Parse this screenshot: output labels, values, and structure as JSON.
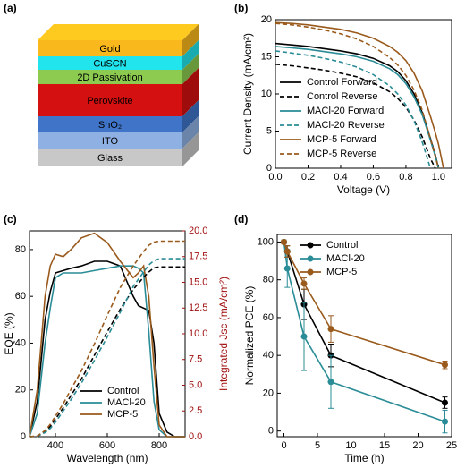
{
  "stack": {
    "panel_label": "(a)",
    "layers": [
      {
        "label": "Gold",
        "color": "#f9b81c"
      },
      {
        "label": "CuSCN",
        "color": "#22e4ec"
      },
      {
        "label": "2D Passivation",
        "color": "#8ccb50"
      },
      {
        "label": "Perovskite",
        "color": "#d41010"
      },
      {
        "label": "SnO₂",
        "color": "#3f74c8"
      },
      {
        "label": "ITO",
        "color": "#8fb0e3"
      },
      {
        "label": "Glass",
        "color": "#c8c8c8"
      }
    ]
  },
  "chart_data": [
    {
      "type": "line",
      "panel_label": "(b)",
      "xlabel": "Voltage (V)",
      "ylabel": "Current Density (mA/cm²)",
      "xlim": [
        0,
        1.08
      ],
      "xticks": [
        {
          "value": 0,
          "label": "0.0"
        },
        {
          "value": 0.2,
          "label": "0.2"
        },
        {
          "value": 0.4,
          "label": "0.4"
        },
        {
          "value": 0.6,
          "label": "0.6"
        },
        {
          "value": 0.8,
          "label": "0.8"
        },
        {
          "value": 1,
          "label": "1.0"
        }
      ],
      "ylim": [
        0,
        20
      ],
      "yticks": [
        0,
        5,
        10,
        15,
        20
      ],
      "legend": "lower left",
      "x": [
        0,
        0.1,
        0.2,
        0.3,
        0.4,
        0.5,
        0.6,
        0.7,
        0.75,
        0.8,
        0.85,
        0.9,
        0.95,
        0.98,
        1.0,
        1.03
      ],
      "series": [
        {
          "name": "Control Forward",
          "color": "#000000",
          "dash": false,
          "values": [
            16.8,
            16.6,
            16.4,
            16.1,
            15.8,
            15.4,
            14.8,
            13.8,
            13.0,
            11.8,
            10.0,
            7.5,
            4.0,
            1.8,
            0,
            null
          ]
        },
        {
          "name": "Control Reverse",
          "color": "#000000",
          "dash": true,
          "values": [
            14.0,
            13.8,
            13.5,
            13.2,
            12.8,
            12.3,
            11.5,
            10.3,
            9.4,
            8.2,
            6.5,
            4.2,
            1.3,
            0,
            null,
            null
          ]
        },
        {
          "name": "MACl-20 Forward",
          "color": "#2a8c96",
          "dash": false,
          "values": [
            16.4,
            16.2,
            16.0,
            15.7,
            15.4,
            15.0,
            14.4,
            13.4,
            12.6,
            11.4,
            9.6,
            7.2,
            3.8,
            1.6,
            0,
            null
          ]
        },
        {
          "name": "MACl-20 Reverse",
          "color": "#2a8c96",
          "dash": true,
          "values": [
            15.8,
            15.5,
            15.2,
            14.8,
            14.3,
            13.6,
            12.6,
            11.1,
            10.0,
            8.5,
            6.4,
            3.5,
            0,
            null,
            null,
            null
          ]
        },
        {
          "name": "MCP-5 Forward",
          "color": "#9a5a1c",
          "dash": false,
          "values": [
            19.6,
            19.5,
            19.3,
            19.0,
            18.7,
            18.2,
            17.5,
            16.4,
            15.6,
            14.5,
            12.8,
            10.4,
            7.0,
            4.8,
            3.2,
            0
          ]
        },
        {
          "name": "MCP-5 Reverse",
          "color": "#9a5a1c",
          "dash": true,
          "values": [
            19.5,
            19.3,
            19.0,
            18.6,
            18.1,
            17.4,
            16.4,
            14.9,
            13.9,
            12.5,
            10.5,
            7.8,
            4.0,
            1.6,
            0,
            null
          ]
        }
      ]
    },
    {
      "type": "line",
      "panel_label": "(c)",
      "xlabel": "Wavelength (nm)",
      "ylabel": "EQE (%)",
      "y2label": "Integrated Jsc (mA/cm²)",
      "xlim": [
        300,
        900
      ],
      "xticks": [
        400,
        600,
        800
      ],
      "ylim": [
        0,
        88
      ],
      "yticks": [
        0,
        20,
        40,
        60,
        80
      ],
      "y2lim": [
        0,
        20
      ],
      "y2ticks": [
        {
          "value": 0,
          "label": "0.0"
        },
        {
          "value": 2.5,
          "label": "2.5"
        },
        {
          "value": 5,
          "label": "5.0"
        },
        {
          "value": 7.5,
          "label": "7.5"
        },
        {
          "value": 10,
          "label": "10.0"
        },
        {
          "value": 12.5,
          "label": "12.5"
        },
        {
          "value": 15,
          "label": "15.0"
        },
        {
          "value": 17.5,
          "label": "17.5"
        },
        {
          "value": 20,
          "label": "20.0"
        }
      ],
      "y2color": "#a01010",
      "legend": "lower right",
      "x": [
        300,
        330,
        360,
        380,
        400,
        430,
        460,
        500,
        550,
        600,
        650,
        700,
        720,
        740,
        760,
        780,
        800,
        830,
        860,
        900
      ],
      "series": [
        {
          "name": "Control",
          "color": "#000000",
          "dash": false,
          "values": [
            0,
            15,
            50,
            62,
            70,
            71,
            72,
            73,
            75,
            75,
            73,
            60,
            56,
            55,
            54,
            40,
            10,
            2,
            0,
            0
          ]
        },
        {
          "name": "MACl-20",
          "color": "#2a8c96",
          "dash": false,
          "values": [
            0,
            10,
            40,
            55,
            68,
            70,
            70,
            70,
            71,
            72,
            73,
            73,
            72,
            70,
            45,
            15,
            3,
            0,
            0,
            0
          ]
        },
        {
          "name": "MCP-5",
          "color": "#9a5a1c",
          "dash": false,
          "values": [
            0,
            20,
            60,
            73,
            78,
            77,
            80,
            85,
            87,
            83,
            75,
            68,
            70,
            73,
            60,
            30,
            5,
            0,
            0,
            0
          ]
        },
        {
          "color": "#000000",
          "dash": true,
          "axis": "y2",
          "values": [
            0,
            0.05,
            0.5,
            1,
            1.7,
            2.8,
            4,
            5.6,
            7.9,
            10.2,
            12.4,
            14.3,
            14.9,
            15.5,
            16.0,
            16.4,
            16.5,
            16.5,
            16.5,
            16.5
          ]
        },
        {
          "color": "#2a8c96",
          "dash": true,
          "axis": "y2",
          "values": [
            0,
            0.03,
            0.4,
            0.8,
            1.4,
            2.5,
            3.6,
            5.2,
            7.4,
            9.7,
            12.1,
            14.6,
            15.3,
            16.0,
            16.7,
            17.1,
            17.3,
            17.3,
            17.3,
            17.3
          ]
        },
        {
          "color": "#9a5a1c",
          "dash": true,
          "axis": "y2",
          "values": [
            0,
            0.06,
            0.6,
            1.2,
            2.0,
            3.2,
            4.6,
            6.4,
            9.0,
            11.8,
            14.5,
            16.6,
            17.3,
            18.0,
            18.6,
            18.9,
            19.0,
            19.0,
            19.0,
            19.0
          ]
        }
      ]
    },
    {
      "type": "line",
      "panel_label": "(d)",
      "xlabel": "Time (h)",
      "ylabel": "Normalized PCE (%)",
      "xlim": [
        -1,
        25
      ],
      "xticks": [
        0,
        5,
        10,
        15,
        20,
        25
      ],
      "ylim": [
        -3,
        104
      ],
      "yticks": [
        0,
        20,
        40,
        60,
        80,
        100
      ],
      "legend": "upper left",
      "markers": true,
      "x": [
        0,
        0.5,
        3,
        7,
        24
      ],
      "series": [
        {
          "name": "Control",
          "color": "#000000",
          "dash": false,
          "values": [
            100,
            95,
            67,
            40,
            15
          ],
          "errors": [
            1,
            3,
            8,
            6,
            3
          ]
        },
        {
          "name": "MACl-20",
          "color": "#2a8c96",
          "dash": false,
          "values": [
            100,
            86,
            50,
            26,
            5
          ],
          "errors": [
            1,
            10,
            18,
            14,
            6
          ]
        },
        {
          "name": "MCP-5",
          "color": "#9a5a1c",
          "dash": false,
          "values": [
            100,
            95,
            78,
            54,
            35
          ],
          "errors": [
            1,
            3,
            3,
            7,
            2
          ]
        }
      ]
    }
  ]
}
